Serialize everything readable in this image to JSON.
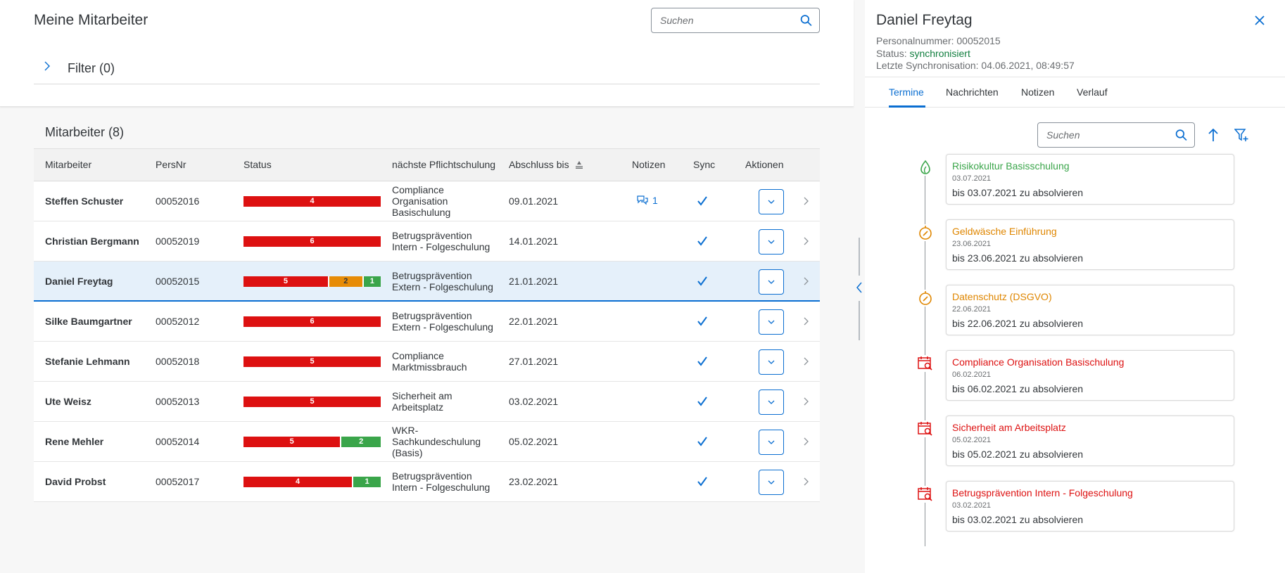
{
  "page": {
    "title": "Meine Mitarbeiter"
  },
  "search": {
    "placeholder": "Suchen"
  },
  "filter": {
    "label": "Filter (0)"
  },
  "table": {
    "title": "Mitarbeiter (8)",
    "columns": {
      "name": "Mitarbeiter",
      "pers": "PersNr",
      "status": "Status",
      "course": "nächste Pflichtschulung",
      "date": "Abschluss bis",
      "notes": "Notizen",
      "sync": "Sync",
      "actions": "Aktionen"
    },
    "rows": [
      {
        "name": "Steffen Schuster",
        "pers": "00052016",
        "status": [
          {
            "color": "red",
            "count": 4
          }
        ],
        "course": "Compliance Organisation Basischulung",
        "date": "09.01.2021",
        "notes": "1",
        "selected": false
      },
      {
        "name": "Christian Bergmann",
        "pers": "00052019",
        "status": [
          {
            "color": "red",
            "count": 6
          }
        ],
        "course": "Betrugsprävention Intern - Folgeschulung",
        "date": "14.01.2021",
        "notes": "",
        "selected": false
      },
      {
        "name": "Daniel Freytag",
        "pers": "00052015",
        "status": [
          {
            "color": "red",
            "count": 5
          },
          {
            "color": "orange",
            "count": 2
          },
          {
            "color": "green",
            "count": 1
          }
        ],
        "course": "Betrugsprävention Extern - Folgeschulung",
        "date": "21.01.2021",
        "notes": "",
        "selected": true
      },
      {
        "name": "Silke Baumgartner",
        "pers": "00052012",
        "status": [
          {
            "color": "red",
            "count": 6
          }
        ],
        "course": "Betrugsprävention Extern - Folgeschulung",
        "date": "22.01.2021",
        "notes": "",
        "selected": false
      },
      {
        "name": "Stefanie Lehmann",
        "pers": "00052018",
        "status": [
          {
            "color": "red",
            "count": 5
          }
        ],
        "course": "Compliance Marktmissbrauch",
        "date": "27.01.2021",
        "notes": "",
        "selected": false
      },
      {
        "name": "Ute Weisz",
        "pers": "00052013",
        "status": [
          {
            "color": "red",
            "count": 5
          }
        ],
        "course": "Sicherheit am Arbeitsplatz",
        "date": "03.02.2021",
        "notes": "",
        "selected": false
      },
      {
        "name": "Rene Mehler",
        "pers": "00052014",
        "status": [
          {
            "color": "red",
            "count": 5
          },
          {
            "color": "green",
            "count": 2
          }
        ],
        "course": "WKR-Sachkundeschulung (Basis)",
        "date": "05.02.2021",
        "notes": "",
        "selected": false
      },
      {
        "name": "David Probst",
        "pers": "00052017",
        "status": [
          {
            "color": "red",
            "count": 4
          },
          {
            "color": "green",
            "count": 1
          }
        ],
        "course": "Betrugsprävention Intern - Folgeschulung",
        "date": "23.02.2021",
        "notes": "",
        "selected": false
      }
    ]
  },
  "detail": {
    "name": "Daniel Freytag",
    "pers_label": "Personalnummer:",
    "pers_value": "00052015",
    "status_label": "Status:",
    "status_value": "synchronisiert",
    "sync_label": "Letzte Synchronisation:",
    "sync_value": "04.06.2021, 08:49:57",
    "tabs": [
      "Termine",
      "Nachrichten",
      "Notizen",
      "Verlauf"
    ],
    "search_placeholder": "Suchen",
    "timeline": [
      {
        "title": "Risikokultur Basisschulung",
        "date": "03.07.2021",
        "due": "bis 03.07.2021 zu absolvieren",
        "color": "green",
        "icon": "leaf-icon"
      },
      {
        "title": "Geldwäsche Einführung",
        "date": "23.06.2021",
        "due": "bis 23.06.2021 zu absolvieren",
        "color": "orange",
        "icon": "compass-icon"
      },
      {
        "title": "Datenschutz (DSGVO)",
        "date": "22.06.2021",
        "due": "bis 22.06.2021 zu absolvieren",
        "color": "orange",
        "icon": "compass-icon"
      },
      {
        "title": "Compliance Organisation Basischulung",
        "date": "06.02.2021",
        "due": "bis 06.02.2021 zu absolvieren",
        "color": "red",
        "icon": "calendar-search-icon"
      },
      {
        "title": "Sicherheit am Arbeitsplatz",
        "date": "05.02.2021",
        "due": "bis 05.02.2021 zu absolvieren",
        "color": "red",
        "icon": "calendar-search-icon"
      },
      {
        "title": "Betrugsprävention Intern - Folgeschulung",
        "date": "03.02.2021",
        "due": "bis 03.02.2021 zu absolvieren",
        "color": "red",
        "icon": "calendar-search-icon"
      }
    ]
  },
  "colors": {
    "accent": "#0a6ed1",
    "red": "#dd1111",
    "orange": "#e78c07",
    "green": "#3aa54a",
    "ok": "#107e3e"
  }
}
